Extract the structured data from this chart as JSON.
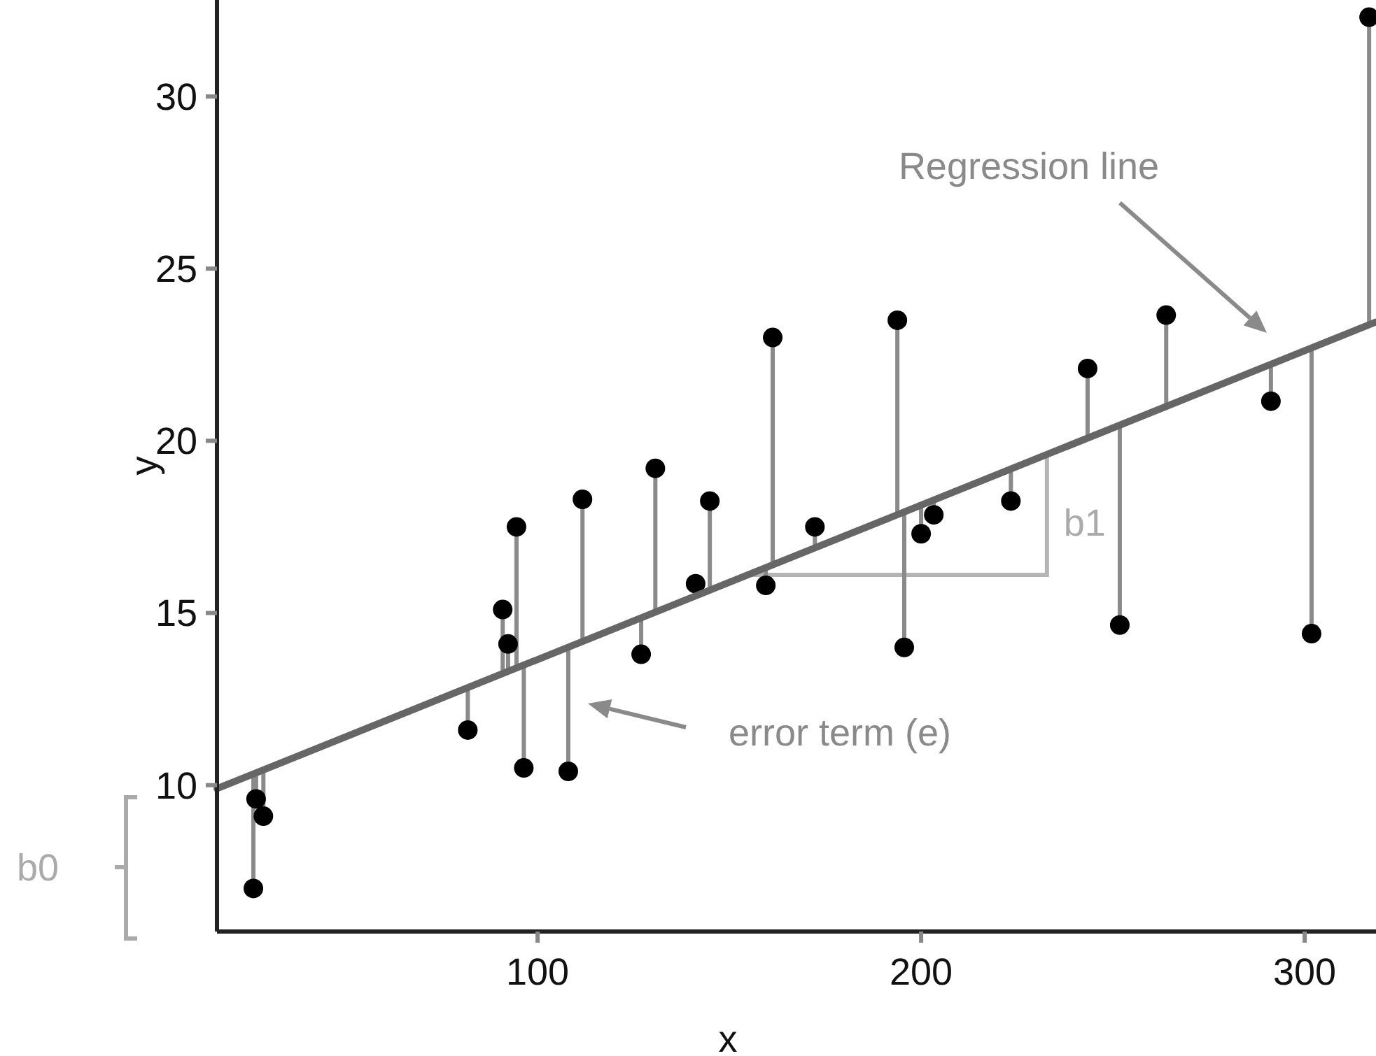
{
  "chart_data": {
    "type": "scatter",
    "xlabel": "x",
    "ylabel": "y",
    "xlim": [
      16.4,
      318.6
    ],
    "ylim": [
      5.75,
      32.8
    ],
    "xticks": [
      100,
      200,
      300
    ],
    "yticks": [
      10,
      15,
      20,
      25,
      30
    ],
    "series": [
      {
        "color": "#000000",
        "marker": "circle",
        "x": [
          25.9,
          26.6,
          28.5,
          81.8,
          90.9,
          92.3,
          94.5,
          96.4,
          108.0,
          111.7,
          127.0,
          130.7,
          141.2,
          144.9,
          159.5,
          161.3,
          172.3,
          193.8,
          195.6,
          200.0,
          203.3,
          223.4,
          243.4,
          251.8,
          263.9,
          291.2,
          301.8,
          316.8
        ],
        "values": [
          7.0,
          9.6,
          9.1,
          11.6,
          15.1,
          14.1,
          17.5,
          10.5,
          10.4,
          18.3,
          13.8,
          19.2,
          15.85,
          18.25,
          15.8,
          23.0,
          17.5,
          23.5,
          14.0,
          17.3,
          17.85,
          18.25,
          22.1,
          14.65,
          23.65,
          21.15,
          14.4,
          32.3
        ],
        "errors": [
          [
            7.0,
            10.33
          ],
          [
            9.6,
            10.36
          ],
          [
            9.1,
            10.44
          ],
          [
            11.6,
            12.83
          ],
          [
            13.24,
            15.1
          ],
          [
            13.3,
            14.1
          ],
          [
            13.4,
            17.5
          ],
          [
            10.5,
            13.49
          ],
          [
            10.4,
            14.01
          ],
          [
            14.17,
            18.3
          ],
          [
            13.8,
            14.86
          ],
          [
            15.02,
            19.2
          ],
          [
            15.5,
            15.85
          ],
          [
            15.66,
            18.25
          ],
          [
            15.8,
            16.32
          ],
          [
            16.4,
            23.0
          ],
          [
            16.89,
            17.5
          ],
          [
            17.85,
            23.5
          ],
          [
            14.0,
            17.94
          ],
          [
            17.3,
            18.13
          ],
          [
            17.85,
            18.28
          ],
          [
            18.25,
            19.18
          ],
          [
            20.08,
            22.1
          ],
          [
            14.65,
            20.45
          ],
          [
            21.0,
            23.65
          ],
          [
            21.15,
            22.22
          ],
          [
            14.4,
            22.7
          ],
          [
            23.37,
            32.3
          ]
        ]
      },
      {
        "type": "line",
        "marker": "none",
        "color": "#666666",
        "x": [
          16.4,
          318.6
        ],
        "values": [
          9.9,
          23.45
        ]
      }
    ],
    "annotations": [
      "Regression line",
      "error term (e)",
      {
        "text": "b1",
        "x": 232.8,
        "y": 19.6
      },
      "b0"
    ]
  }
}
